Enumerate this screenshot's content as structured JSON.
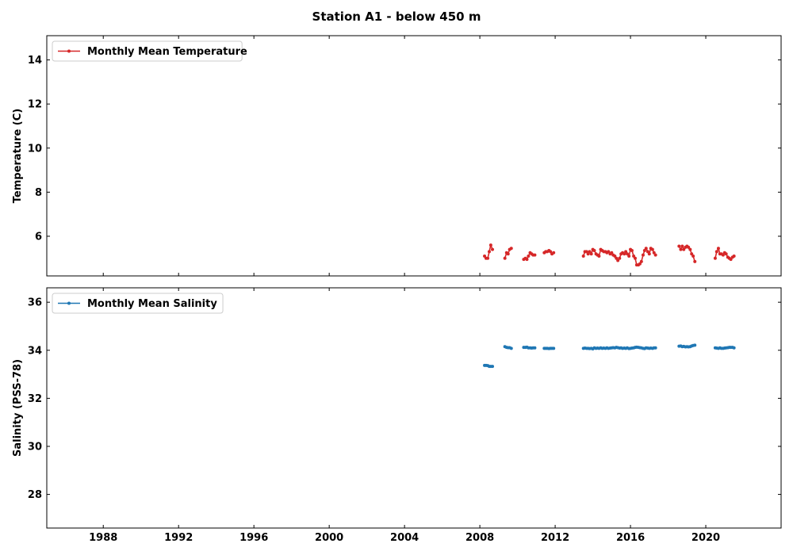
{
  "figure": {
    "title": "Station A1 - below 450 m"
  },
  "chart_data": [
    {
      "type": "line",
      "xlim": [
        1985.0,
        2024.0
      ],
      "ylim": [
        4.2,
        15.1
      ],
      "xticks": [
        1988,
        1992,
        1996,
        2000,
        2004,
        2008,
        2012,
        2016,
        2020
      ],
      "show_xtick_labels": false,
      "yticks": [
        6,
        8,
        10,
        12,
        14
      ],
      "ylabel": "Temperature (C)",
      "xlabel": "",
      "grid": false,
      "legend_position": "top-left",
      "color": "#d62728",
      "series": [
        {
          "name": "Monthly Mean Temperature",
          "segments": [
            [
              [
                2008.25,
                5.1
              ],
              [
                2008.33,
                5.0
              ],
              [
                2008.42,
                5.0
              ],
              [
                2008.5,
                5.3
              ],
              [
                2008.58,
                5.6
              ],
              [
                2008.67,
                5.4
              ]
            ],
            [
              [
                2009.33,
                5.0
              ],
              [
                2009.42,
                5.25
              ],
              [
                2009.5,
                5.2
              ],
              [
                2009.58,
                5.4
              ],
              [
                2009.67,
                5.45
              ]
            ],
            [
              [
                2010.33,
                4.95
              ],
              [
                2010.42,
                5.0
              ],
              [
                2010.5,
                4.95
              ],
              [
                2010.58,
                5.1
              ],
              [
                2010.67,
                5.25
              ],
              [
                2010.75,
                5.2
              ],
              [
                2010.83,
                5.15
              ],
              [
                2010.92,
                5.15
              ]
            ],
            [
              [
                2011.42,
                5.25
              ],
              [
                2011.5,
                5.3
              ],
              [
                2011.58,
                5.3
              ],
              [
                2011.67,
                5.35
              ],
              [
                2011.75,
                5.3
              ],
              [
                2011.83,
                5.2
              ],
              [
                2011.92,
                5.25
              ]
            ],
            [
              [
                2013.5,
                5.1
              ],
              [
                2013.58,
                5.3
              ],
              [
                2013.67,
                5.3
              ],
              [
                2013.75,
                5.2
              ],
              [
                2013.83,
                5.3
              ],
              [
                2013.92,
                5.2
              ],
              [
                2014.0,
                5.4
              ],
              [
                2014.08,
                5.35
              ],
              [
                2014.17,
                5.2
              ],
              [
                2014.25,
                5.15
              ],
              [
                2014.33,
                5.1
              ],
              [
                2014.42,
                5.4
              ],
              [
                2014.5,
                5.35
              ],
              [
                2014.58,
                5.3
              ],
              [
                2014.67,
                5.3
              ],
              [
                2014.75,
                5.25
              ],
              [
                2014.83,
                5.3
              ],
              [
                2014.92,
                5.2
              ],
              [
                2015.0,
                5.25
              ],
              [
                2015.08,
                5.15
              ],
              [
                2015.17,
                5.1
              ],
              [
                2015.25,
                5.0
              ],
              [
                2015.33,
                4.9
              ],
              [
                2015.42,
                5.0
              ],
              [
                2015.5,
                5.2
              ],
              [
                2015.58,
                5.25
              ],
              [
                2015.67,
                5.2
              ],
              [
                2015.75,
                5.3
              ],
              [
                2015.83,
                5.2
              ],
              [
                2015.92,
                5.1
              ],
              [
                2016.0,
                5.4
              ],
              [
                2016.08,
                5.35
              ],
              [
                2016.17,
                5.1
              ],
              [
                2016.25,
                5.0
              ],
              [
                2016.33,
                4.7
              ],
              [
                2016.42,
                4.7
              ],
              [
                2016.5,
                4.75
              ],
              [
                2016.58,
                4.85
              ],
              [
                2016.67,
                5.15
              ],
              [
                2016.75,
                5.35
              ],
              [
                2016.83,
                5.45
              ],
              [
                2016.92,
                5.3
              ],
              [
                2017.0,
                5.2
              ],
              [
                2017.08,
                5.45
              ],
              [
                2017.17,
                5.4
              ],
              [
                2017.25,
                5.25
              ],
              [
                2017.33,
                5.15
              ]
            ],
            [
              [
                2018.58,
                5.55
              ],
              [
                2018.67,
                5.4
              ],
              [
                2018.75,
                5.55
              ],
              [
                2018.83,
                5.4
              ],
              [
                2018.92,
                5.5
              ],
              [
                2019.0,
                5.55
              ],
              [
                2019.08,
                5.5
              ],
              [
                2019.17,
                5.4
              ],
              [
                2019.25,
                5.2
              ],
              [
                2019.33,
                5.1
              ],
              [
                2019.42,
                4.85
              ]
            ],
            [
              [
                2020.5,
                5.0
              ],
              [
                2020.58,
                5.3
              ],
              [
                2020.67,
                5.45
              ],
              [
                2020.75,
                5.2
              ],
              [
                2020.83,
                5.2
              ],
              [
                2020.92,
                5.15
              ],
              [
                2021.0,
                5.25
              ],
              [
                2021.08,
                5.2
              ],
              [
                2021.17,
                5.05
              ],
              [
                2021.25,
                5.0
              ],
              [
                2021.33,
                4.95
              ],
              [
                2021.42,
                5.05
              ],
              [
                2021.5,
                5.1
              ]
            ]
          ]
        }
      ]
    },
    {
      "type": "line",
      "xlim": [
        1985.0,
        2024.0
      ],
      "ylim": [
        26.6,
        36.6
      ],
      "xticks": [
        1988,
        1992,
        1996,
        2000,
        2004,
        2008,
        2012,
        2016,
        2020
      ],
      "xtick_labels": [
        "1988",
        "1992",
        "1996",
        "2000",
        "2004",
        "2008",
        "2012",
        "2016",
        "2020"
      ],
      "show_xtick_labels": true,
      "yticks": [
        28,
        30,
        32,
        34,
        36
      ],
      "ylabel": "Salinity (PSS-78)",
      "xlabel": "",
      "grid": false,
      "legend_position": "top-left",
      "color": "#1f77b4",
      "series": [
        {
          "name": "Monthly Mean Salinity",
          "segments": [
            [
              [
                2008.25,
                33.37
              ],
              [
                2008.33,
                33.37
              ],
              [
                2008.42,
                33.36
              ],
              [
                2008.5,
                33.33
              ],
              [
                2008.58,
                33.33
              ],
              [
                2008.67,
                33.33
              ]
            ],
            [
              [
                2009.33,
                34.15
              ],
              [
                2009.42,
                34.12
              ],
              [
                2009.5,
                34.11
              ],
              [
                2009.58,
                34.11
              ],
              [
                2009.67,
                34.08
              ]
            ],
            [
              [
                2010.33,
                34.12
              ],
              [
                2010.42,
                34.12
              ],
              [
                2010.5,
                34.13
              ],
              [
                2010.58,
                34.1
              ],
              [
                2010.67,
                34.1
              ],
              [
                2010.75,
                34.09
              ],
              [
                2010.83,
                34.1
              ],
              [
                2010.92,
                34.1
              ]
            ],
            [
              [
                2011.42,
                34.08
              ],
              [
                2011.5,
                34.08
              ],
              [
                2011.58,
                34.08
              ],
              [
                2011.67,
                34.07
              ],
              [
                2011.75,
                34.08
              ],
              [
                2011.83,
                34.08
              ],
              [
                2011.92,
                34.08
              ]
            ],
            [
              [
                2013.5,
                34.08
              ],
              [
                2013.58,
                34.09
              ],
              [
                2013.67,
                34.08
              ],
              [
                2013.75,
                34.08
              ],
              [
                2013.83,
                34.07
              ],
              [
                2013.92,
                34.08
              ],
              [
                2014.0,
                34.06
              ],
              [
                2014.08,
                34.1
              ],
              [
                2014.17,
                34.08
              ],
              [
                2014.25,
                34.09
              ],
              [
                2014.33,
                34.08
              ],
              [
                2014.42,
                34.1
              ],
              [
                2014.5,
                34.08
              ],
              [
                2014.58,
                34.09
              ],
              [
                2014.67,
                34.08
              ],
              [
                2014.75,
                34.1
              ],
              [
                2014.83,
                34.08
              ],
              [
                2014.92,
                34.09
              ],
              [
                2015.0,
                34.1
              ],
              [
                2015.08,
                34.11
              ],
              [
                2015.17,
                34.1
              ],
              [
                2015.25,
                34.12
              ],
              [
                2015.33,
                34.11
              ],
              [
                2015.42,
                34.09
              ],
              [
                2015.5,
                34.1
              ],
              [
                2015.58,
                34.08
              ],
              [
                2015.67,
                34.09
              ],
              [
                2015.75,
                34.08
              ],
              [
                2015.83,
                34.1
              ],
              [
                2015.92,
                34.07
              ],
              [
                2016.0,
                34.08
              ],
              [
                2016.08,
                34.09
              ],
              [
                2016.17,
                34.1
              ],
              [
                2016.25,
                34.12
              ],
              [
                2016.33,
                34.13
              ],
              [
                2016.42,
                34.12
              ],
              [
                2016.5,
                34.11
              ],
              [
                2016.58,
                34.1
              ],
              [
                2016.67,
                34.08
              ],
              [
                2016.75,
                34.07
              ],
              [
                2016.83,
                34.1
              ],
              [
                2016.92,
                34.09
              ],
              [
                2017.0,
                34.08
              ],
              [
                2017.08,
                34.09
              ],
              [
                2017.17,
                34.08
              ],
              [
                2017.25,
                34.1
              ],
              [
                2017.33,
                34.1
              ]
            ],
            [
              [
                2018.58,
                34.17
              ],
              [
                2018.67,
                34.18
              ],
              [
                2018.75,
                34.15
              ],
              [
                2018.83,
                34.16
              ],
              [
                2018.92,
                34.14
              ],
              [
                2019.0,
                34.15
              ],
              [
                2019.08,
                34.14
              ],
              [
                2019.17,
                34.15
              ],
              [
                2019.25,
                34.18
              ],
              [
                2019.33,
                34.2
              ],
              [
                2019.42,
                34.21
              ]
            ],
            [
              [
                2020.5,
                34.1
              ],
              [
                2020.58,
                34.09
              ],
              [
                2020.67,
                34.08
              ],
              [
                2020.75,
                34.1
              ],
              [
                2020.83,
                34.08
              ],
              [
                2020.92,
                34.08
              ],
              [
                2021.0,
                34.09
              ],
              [
                2021.08,
                34.1
              ],
              [
                2021.17,
                34.11
              ],
              [
                2021.25,
                34.12
              ],
              [
                2021.33,
                34.12
              ],
              [
                2021.42,
                34.12
              ],
              [
                2021.5,
                34.1
              ]
            ]
          ]
        }
      ]
    }
  ]
}
